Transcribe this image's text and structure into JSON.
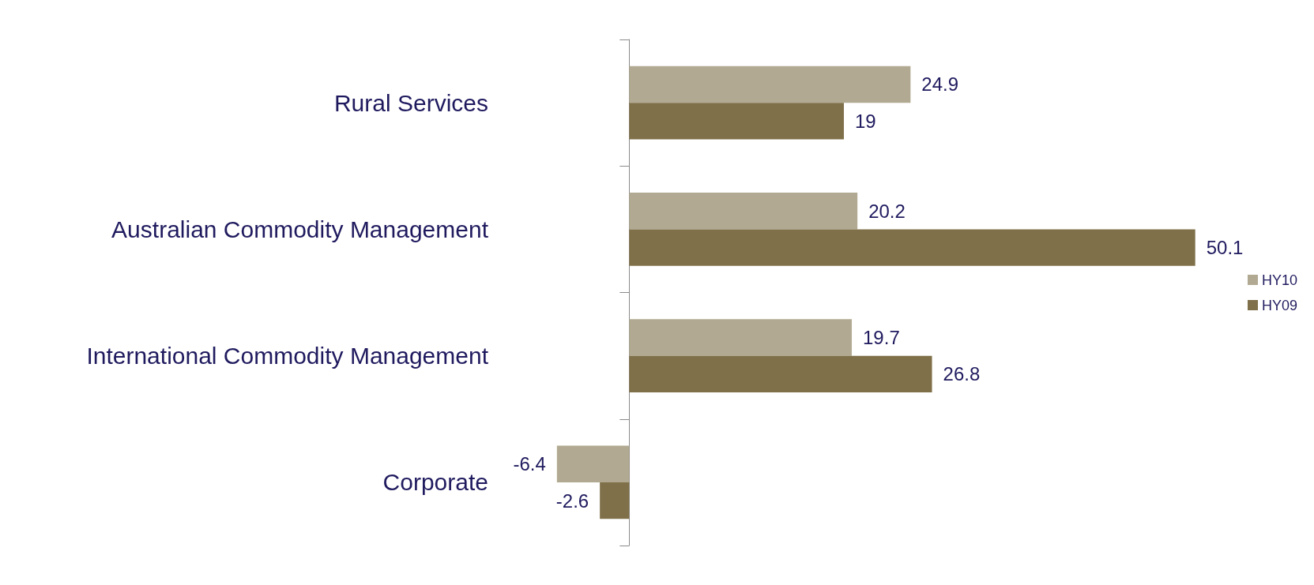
{
  "chart_data": {
    "type": "bar",
    "orientation": "horizontal",
    "categories": [
      "Rural Services",
      "Australian Commodity Management",
      "International Commodity Management",
      "Corporate"
    ],
    "series": [
      {
        "name": "HY10",
        "color": "#b1a991",
        "values": [
          24.9,
          20.2,
          19.7,
          -6.4
        ]
      },
      {
        "name": "HY09",
        "color": "#7f7049",
        "values": [
          19,
          50.1,
          26.8,
          -2.6
        ]
      }
    ],
    "data_labels": true,
    "legend": "right"
  }
}
